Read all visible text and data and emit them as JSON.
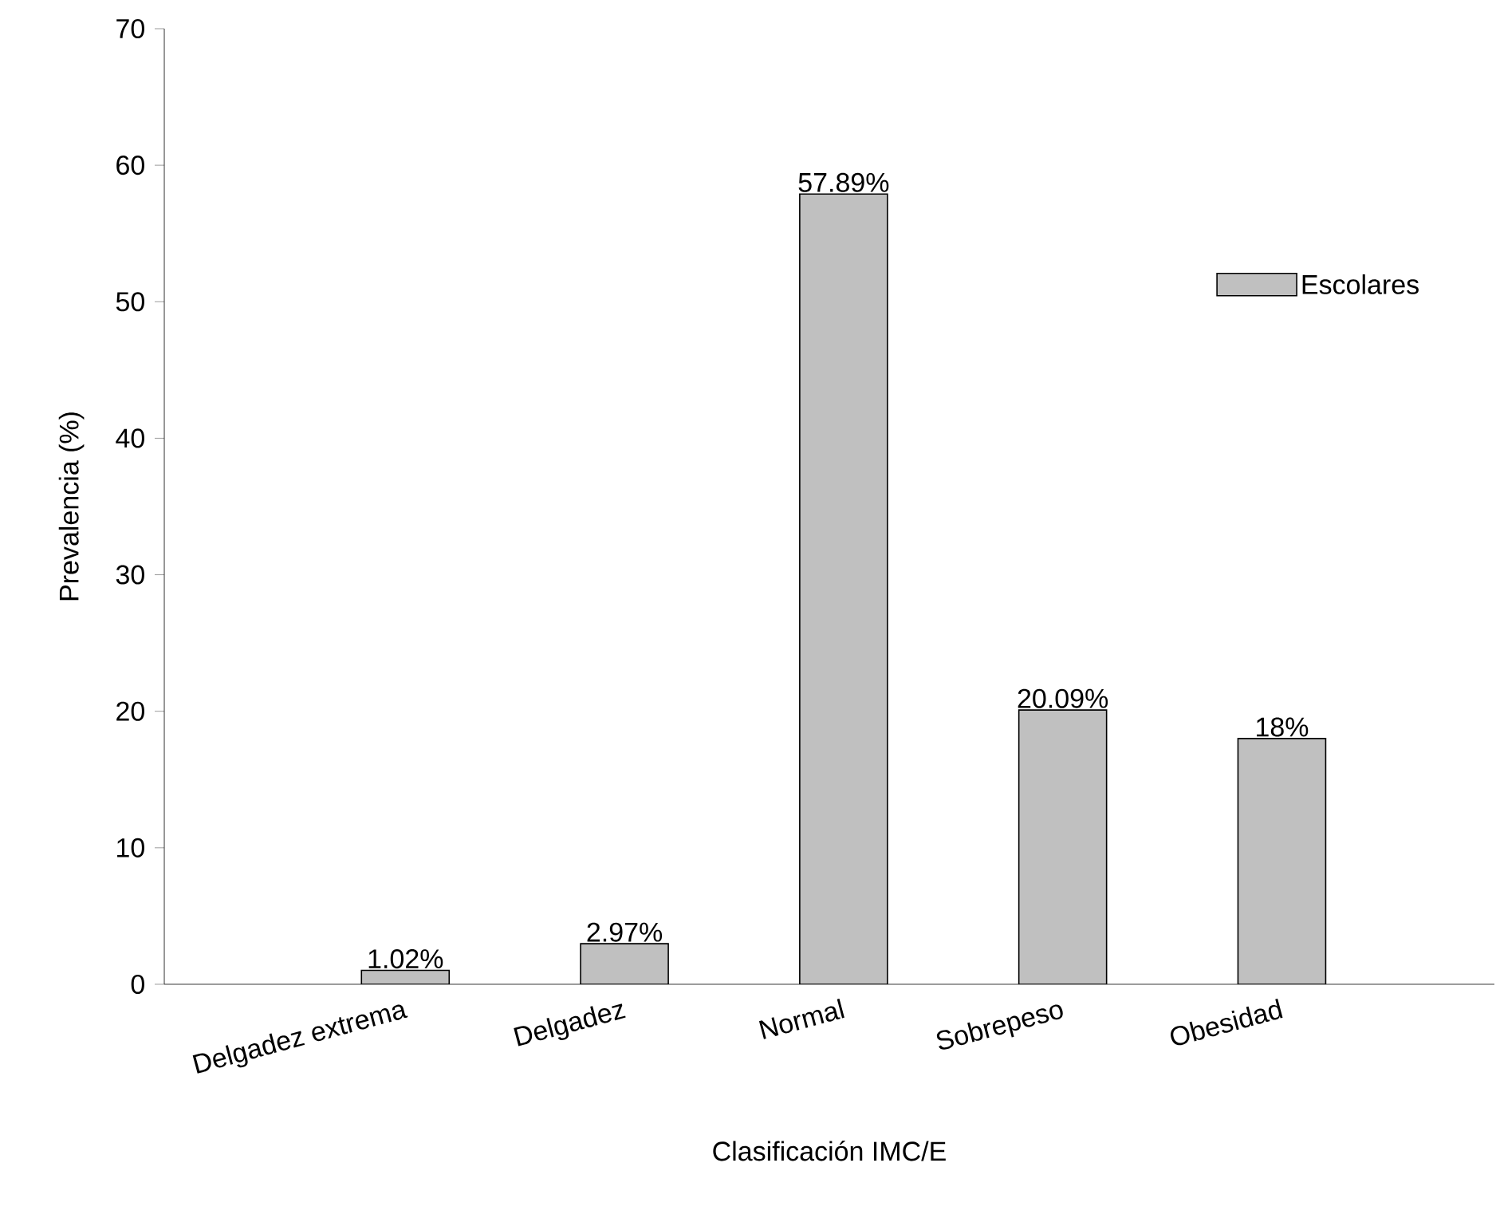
{
  "chart_data": {
    "type": "bar",
    "xlabel": "Clasificación IMC/E",
    "ylabel": "Prevalencia (%)",
    "categories": [
      "Delgadez extrema",
      "Delgadez",
      "Normal",
      "Sobrepeso",
      "Obesidad"
    ],
    "series": [
      {
        "name": "Escolares",
        "color": "#c0c0c0",
        "values": [
          1.02,
          2.97,
          57.89,
          20.09,
          18
        ],
        "value_labels": [
          "1.02%",
          "2.97%",
          "57.89%",
          "20.09%",
          "18%"
        ]
      }
    ],
    "ylim": [
      0,
      70
    ],
    "yticks": [
      0,
      10,
      20,
      30,
      40,
      50,
      60,
      70
    ],
    "grid": false,
    "legend": "right"
  }
}
